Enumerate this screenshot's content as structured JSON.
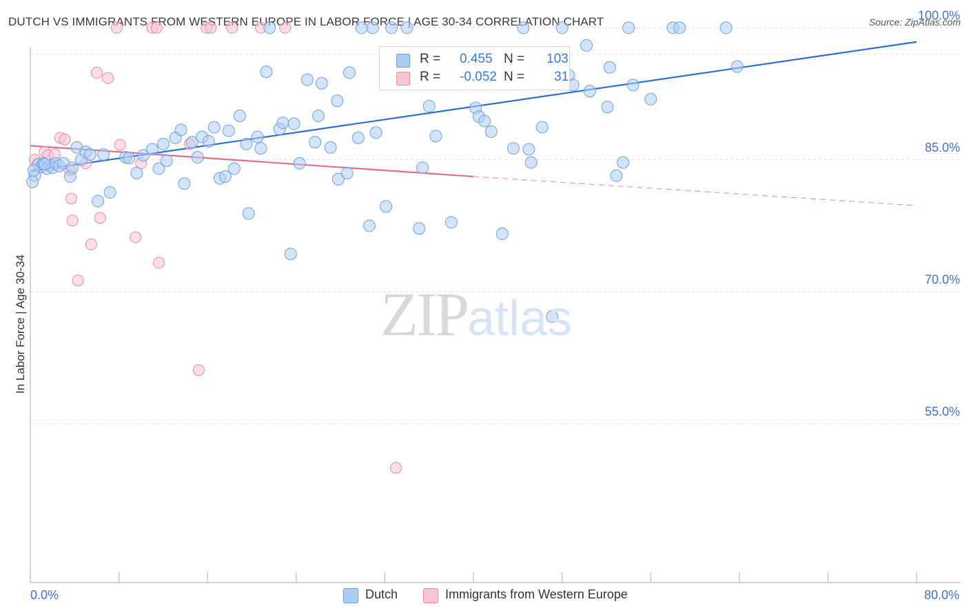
{
  "title": "DUTCH VS IMMIGRANTS FROM WESTERN EUROPE IN LABOR FORCE | AGE 30-34 CORRELATION CHART",
  "source": "Source: ZipAtlas.com",
  "watermark": {
    "zip": "ZIP",
    "atlas": "atlas"
  },
  "legend_top": {
    "rows": [
      {
        "r_label": "R =",
        "r_value": "0.455",
        "n_label": "N =",
        "n_value": "103"
      },
      {
        "r_label": "R =",
        "r_value": "-0.052",
        "n_label": "N =",
        "n_value": "31"
      }
    ]
  },
  "legend_bottom": [
    "Dutch",
    "Immigrants from Western Europe"
  ],
  "colors": {
    "dutch_fill": "#aecdf2",
    "dutch_stroke": "#6fa0de",
    "dutch_line": "#2a6fd2",
    "imm_fill": "#f7c4d2",
    "imm_stroke": "#ea8aa6",
    "imm_line": "#e06b93",
    "tick_label": "#4472c4",
    "grid": "#dddddd"
  },
  "chart_data": {
    "type": "scatter",
    "title": "DUTCH VS IMMIGRANTS FROM WESTERN EUROPE IN LABOR FORCE | AGE 30-34 CORRELATION CHART",
    "xlabel": "",
    "ylabel": "In Labor Force | Age 30-34",
    "xlim": [
      0,
      80
    ],
    "ylim": [
      37,
      103
    ],
    "x_tick_labels": [
      "0.0%",
      "80.0%"
    ],
    "y_ticks": [
      55,
      70,
      85,
      100
    ],
    "y_tick_labels": [
      "55.0%",
      "70.0%",
      "85.0%",
      "100.0%"
    ],
    "grid": true,
    "legend_position": "top-center",
    "series": [
      {
        "name": "Dutch",
        "R": 0.455,
        "N": 103,
        "trend": {
          "x": [
            0,
            80
          ],
          "y": [
            83.7,
            98.4
          ],
          "style": "solid"
        },
        "points": [
          [
            0.4,
            83.2
          ],
          [
            0.7,
            84.5
          ],
          [
            1.0,
            84.2
          ],
          [
            1.2,
            84.6
          ],
          [
            1.5,
            84.0
          ],
          [
            1.8,
            84.4
          ],
          [
            2.0,
            84.1
          ],
          [
            2.3,
            84.6
          ],
          [
            2.6,
            84.3
          ],
          [
            3.0,
            84.6
          ],
          [
            3.6,
            83.1
          ],
          [
            3.8,
            84.1
          ],
          [
            4.2,
            86.4
          ],
          [
            4.6,
            85.0
          ],
          [
            5.0,
            85.9
          ],
          [
            5.4,
            85.6
          ],
          [
            6.1,
            80.3
          ],
          [
            6.6,
            85.6
          ],
          [
            7.2,
            81.3
          ],
          [
            8.6,
            85.3
          ],
          [
            8.9,
            85.2
          ],
          [
            9.6,
            83.5
          ],
          [
            10.2,
            85.5
          ],
          [
            11.0,
            86.2
          ],
          [
            11.6,
            84.0
          ],
          [
            12.0,
            86.8
          ],
          [
            12.3,
            84.9
          ],
          [
            13.1,
            87.5
          ],
          [
            13.6,
            88.4
          ],
          [
            13.9,
            82.3
          ],
          [
            14.6,
            87.0
          ],
          [
            15.1,
            85.3
          ],
          [
            15.5,
            87.6
          ],
          [
            16.1,
            87.1
          ],
          [
            16.6,
            88.7
          ],
          [
            17.1,
            82.9
          ],
          [
            17.6,
            83.1
          ],
          [
            17.9,
            88.3
          ],
          [
            18.4,
            84.0
          ],
          [
            18.9,
            90.0
          ],
          [
            19.5,
            86.8
          ],
          [
            19.7,
            78.9
          ],
          [
            20.5,
            87.6
          ],
          [
            20.8,
            86.3
          ],
          [
            21.3,
            95.0
          ],
          [
            21.6,
            100.0
          ],
          [
            22.5,
            88.5
          ],
          [
            22.8,
            89.2
          ],
          [
            23.5,
            74.3
          ],
          [
            23.8,
            89.1
          ],
          [
            24.3,
            84.6
          ],
          [
            25.0,
            94.1
          ],
          [
            25.7,
            87.0
          ],
          [
            26.0,
            90.0
          ],
          [
            26.3,
            93.7
          ],
          [
            27.1,
            86.4
          ],
          [
            27.7,
            91.7
          ],
          [
            27.8,
            82.8
          ],
          [
            28.6,
            83.5
          ],
          [
            28.8,
            94.9
          ],
          [
            29.6,
            87.5
          ],
          [
            29.9,
            100.0
          ],
          [
            30.6,
            77.5
          ],
          [
            30.9,
            100.0
          ],
          [
            31.2,
            88.1
          ],
          [
            32.1,
            79.7
          ],
          [
            32.6,
            100.0
          ],
          [
            34.0,
            100.0
          ],
          [
            35.1,
            77.2
          ],
          [
            35.4,
            84.1
          ],
          [
            36.0,
            91.1
          ],
          [
            36.6,
            87.7
          ],
          [
            38.0,
            77.9
          ],
          [
            40.2,
            90.9
          ],
          [
            40.5,
            89.9
          ],
          [
            41.0,
            89.4
          ],
          [
            41.6,
            88.2
          ],
          [
            42.6,
            76.6
          ],
          [
            43.6,
            86.3
          ],
          [
            44.5,
            100.0
          ],
          [
            45.0,
            86.2
          ],
          [
            45.2,
            84.7
          ],
          [
            46.2,
            88.7
          ],
          [
            47.1,
            67.2
          ],
          [
            48.0,
            100.0
          ],
          [
            48.6,
            94.6
          ],
          [
            49.0,
            93.5
          ],
          [
            50.2,
            98.0
          ],
          [
            50.5,
            92.8
          ],
          [
            52.1,
            91.0
          ],
          [
            52.3,
            95.5
          ],
          [
            52.9,
            83.2
          ],
          [
            53.5,
            84.7
          ],
          [
            54.0,
            100.0
          ],
          [
            54.4,
            93.5
          ],
          [
            56.0,
            91.9
          ],
          [
            58.0,
            100.0
          ],
          [
            58.6,
            100.0
          ],
          [
            62.8,
            100.0
          ],
          [
            63.8,
            95.6
          ],
          [
            0.2,
            82.5
          ],
          [
            0.3,
            83.8
          ],
          [
            1.3,
            84.5
          ]
        ]
      },
      {
        "name": "Immigrants from Western Europe",
        "R": -0.052,
        "N": 31,
        "trend": {
          "x": [
            0,
            40,
            80
          ],
          "y": [
            86.6,
            83.1,
            79.8
          ],
          "style": "solid-then-dashed"
        },
        "points": [
          [
            0.4,
            85.0
          ],
          [
            0.7,
            84.5
          ],
          [
            1.3,
            85.9
          ],
          [
            1.6,
            85.5
          ],
          [
            2.2,
            85.6
          ],
          [
            2.7,
            87.5
          ],
          [
            3.1,
            87.3
          ],
          [
            3.6,
            83.8
          ],
          [
            3.7,
            80.6
          ],
          [
            3.8,
            78.1
          ],
          [
            4.3,
            71.3
          ],
          [
            5.0,
            84.6
          ],
          [
            5.5,
            75.4
          ],
          [
            6.0,
            94.9
          ],
          [
            6.3,
            78.4
          ],
          [
            7.0,
            94.3
          ],
          [
            7.8,
            100.0
          ],
          [
            8.1,
            86.7
          ],
          [
            9.5,
            76.2
          ],
          [
            10.0,
            84.6
          ],
          [
            11.0,
            100.0
          ],
          [
            11.4,
            100.0
          ],
          [
            11.6,
            73.3
          ],
          [
            14.4,
            86.8
          ],
          [
            15.2,
            61.1
          ],
          [
            15.9,
            100.0
          ],
          [
            16.3,
            100.0
          ],
          [
            18.2,
            100.0
          ],
          [
            20.8,
            100.0
          ],
          [
            23.0,
            100.0
          ],
          [
            33.0,
            50.0
          ]
        ]
      }
    ]
  }
}
